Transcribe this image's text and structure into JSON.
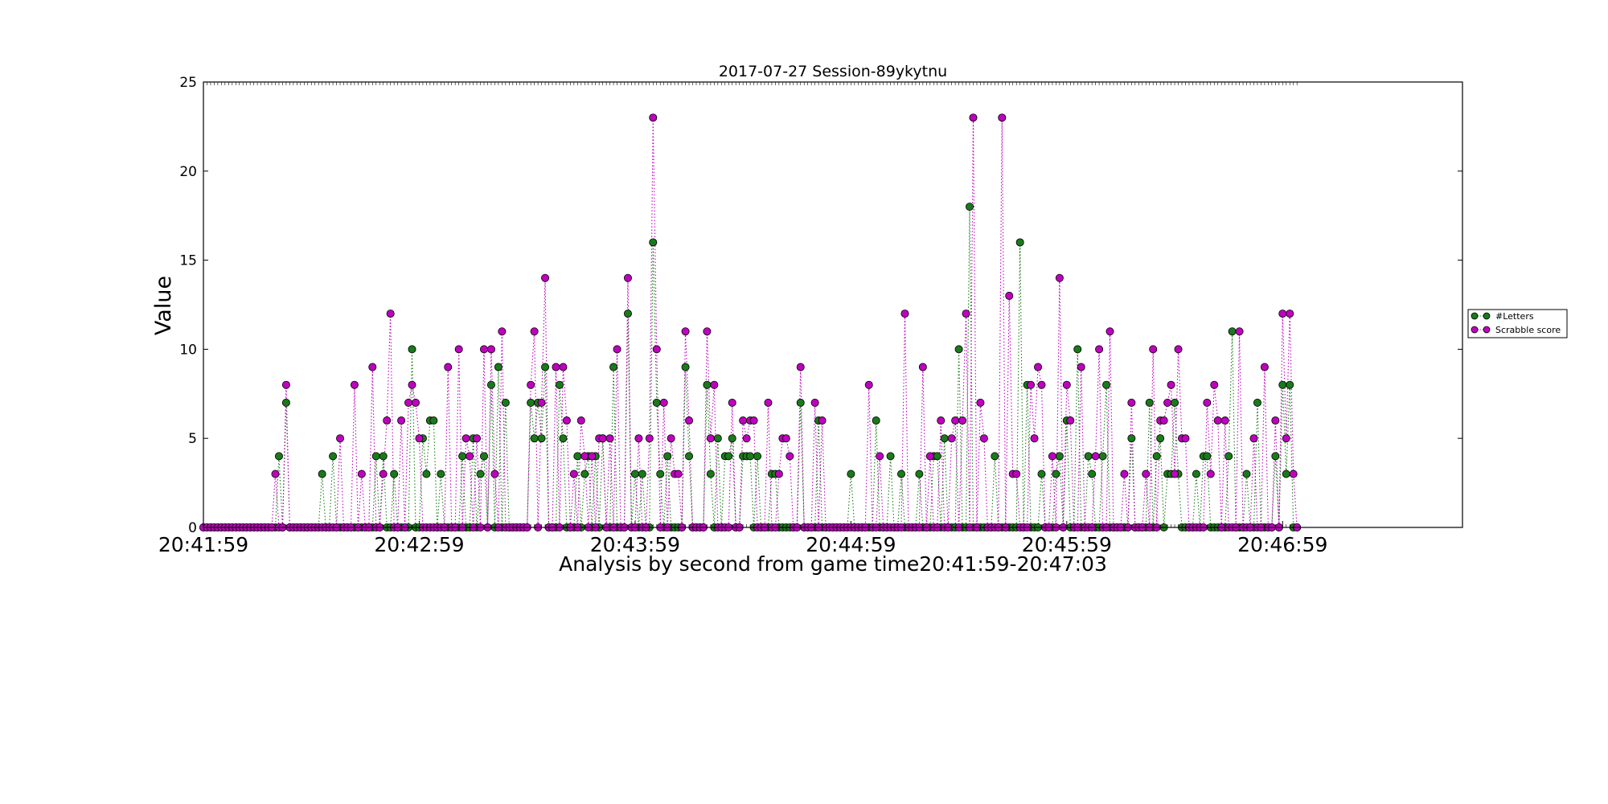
{
  "chart_data": {
    "type": "line",
    "title": "2017-07-27 Session-89ykytnu",
    "xlabel": "Analysis by second from game time20:41:59-20:47:03",
    "ylabel": "Value",
    "xlim": [
      0,
      350
    ],
    "ylim": [
      0,
      25
    ],
    "x_ticks": [
      {
        "t": 0,
        "label": "20:41:59"
      },
      {
        "t": 60,
        "label": "20:42:59"
      },
      {
        "t": 120,
        "label": "20:43:59"
      },
      {
        "t": 180,
        "label": "20:44:59"
      },
      {
        "t": 240,
        "label": "20:45:59"
      },
      {
        "t": 300,
        "label": "20:46:59"
      }
    ],
    "y_ticks": [
      0,
      5,
      10,
      15,
      20,
      25
    ],
    "grid": false,
    "legend": "right-center",
    "x_end": 304,
    "series": [
      {
        "name": "#Letters",
        "color": "#1a7a1a",
        "points": [
          [
            21,
            4
          ],
          [
            23,
            7
          ],
          [
            33,
            3
          ],
          [
            36,
            4
          ],
          [
            48,
            4
          ],
          [
            50,
            4
          ],
          [
            53,
            3
          ],
          [
            58,
            10
          ],
          [
            61,
            5
          ],
          [
            62,
            3
          ],
          [
            63,
            6
          ],
          [
            64,
            6
          ],
          [
            66,
            3
          ],
          [
            72,
            4
          ],
          [
            75,
            5
          ],
          [
            77,
            3
          ],
          [
            78,
            4
          ],
          [
            80,
            8
          ],
          [
            82,
            9
          ],
          [
            84,
            7
          ],
          [
            91,
            7
          ],
          [
            92,
            5
          ],
          [
            93,
            7
          ],
          [
            94,
            5
          ],
          [
            95,
            9
          ],
          [
            99,
            8
          ],
          [
            100,
            5
          ],
          [
            104,
            4
          ],
          [
            106,
            3
          ],
          [
            107,
            4
          ],
          [
            109,
            4
          ],
          [
            111,
            5
          ],
          [
            114,
            9
          ],
          [
            118,
            12
          ],
          [
            120,
            3
          ],
          [
            122,
            3
          ],
          [
            125,
            16
          ],
          [
            126,
            7
          ],
          [
            127,
            3
          ],
          [
            129,
            4
          ],
          [
            134,
            9
          ],
          [
            135,
            4
          ],
          [
            140,
            8
          ],
          [
            141,
            3
          ],
          [
            143,
            5
          ],
          [
            145,
            4
          ],
          [
            146,
            4
          ],
          [
            147,
            5
          ],
          [
            150,
            4
          ],
          [
            151,
            4
          ],
          [
            152,
            4
          ],
          [
            154,
            4
          ],
          [
            158,
            3
          ],
          [
            159,
            3
          ],
          [
            166,
            7
          ],
          [
            171,
            6
          ],
          [
            180,
            3
          ],
          [
            187,
            6
          ],
          [
            191,
            4
          ],
          [
            194,
            3
          ],
          [
            199,
            3
          ],
          [
            203,
            4
          ],
          [
            204,
            4
          ],
          [
            206,
            5
          ],
          [
            210,
            10
          ],
          [
            213,
            18
          ],
          [
            220,
            4
          ],
          [
            227,
            16
          ],
          [
            229,
            8
          ],
          [
            233,
            3
          ],
          [
            237,
            3
          ],
          [
            238,
            4
          ],
          [
            240,
            6
          ],
          [
            243,
            10
          ],
          [
            246,
            4
          ],
          [
            247,
            3
          ],
          [
            250,
            4
          ],
          [
            251,
            8
          ],
          [
            258,
            5
          ],
          [
            263,
            7
          ],
          [
            265,
            4
          ],
          [
            266,
            5
          ],
          [
            268,
            3
          ],
          [
            269,
            3
          ],
          [
            270,
            7
          ],
          [
            271,
            3
          ],
          [
            276,
            3
          ],
          [
            278,
            4
          ],
          [
            279,
            4
          ],
          [
            285,
            4
          ],
          [
            286,
            11
          ],
          [
            290,
            3
          ],
          [
            293,
            7
          ],
          [
            298,
            4
          ],
          [
            300,
            8
          ],
          [
            301,
            3
          ],
          [
            302,
            8
          ]
        ]
      },
      {
        "name": "Scrabble score",
        "color": "#bf00bf",
        "points": [
          [
            20,
            3
          ],
          [
            23,
            8
          ],
          [
            38,
            5
          ],
          [
            42,
            8
          ],
          [
            44,
            3
          ],
          [
            47,
            9
          ],
          [
            50,
            3
          ],
          [
            51,
            6
          ],
          [
            52,
            12
          ],
          [
            55,
            6
          ],
          [
            57,
            7
          ],
          [
            58,
            8
          ],
          [
            59,
            7
          ],
          [
            60,
            5
          ],
          [
            68,
            9
          ],
          [
            71,
            10
          ],
          [
            73,
            5
          ],
          [
            74,
            4
          ],
          [
            76,
            5
          ],
          [
            78,
            10
          ],
          [
            80,
            10
          ],
          [
            81,
            3
          ],
          [
            83,
            11
          ],
          [
            91,
            8
          ],
          [
            92,
            11
          ],
          [
            94,
            7
          ],
          [
            95,
            14
          ],
          [
            98,
            9
          ],
          [
            100,
            9
          ],
          [
            101,
            6
          ],
          [
            103,
            3
          ],
          [
            105,
            6
          ],
          [
            106,
            4
          ],
          [
            108,
            4
          ],
          [
            110,
            5
          ],
          [
            111,
            5
          ],
          [
            113,
            5
          ],
          [
            115,
            10
          ],
          [
            118,
            14
          ],
          [
            121,
            5
          ],
          [
            124,
            5
          ],
          [
            125,
            23
          ],
          [
            126,
            10
          ],
          [
            128,
            7
          ],
          [
            130,
            5
          ],
          [
            131,
            3
          ],
          [
            132,
            3
          ],
          [
            134,
            11
          ],
          [
            135,
            6
          ],
          [
            140,
            11
          ],
          [
            141,
            5
          ],
          [
            142,
            8
          ],
          [
            147,
            7
          ],
          [
            150,
            6
          ],
          [
            151,
            5
          ],
          [
            152,
            6
          ],
          [
            153,
            6
          ],
          [
            157,
            7
          ],
          [
            160,
            3
          ],
          [
            161,
            5
          ],
          [
            162,
            5
          ],
          [
            163,
            4
          ],
          [
            166,
            9
          ],
          [
            170,
            7
          ],
          [
            172,
            6
          ],
          [
            185,
            8
          ],
          [
            188,
            4
          ],
          [
            195,
            12
          ],
          [
            200,
            9
          ],
          [
            202,
            4
          ],
          [
            205,
            6
          ],
          [
            208,
            5
          ],
          [
            209,
            6
          ],
          [
            211,
            6
          ],
          [
            212,
            12
          ],
          [
            214,
            23
          ],
          [
            216,
            7
          ],
          [
            217,
            5
          ],
          [
            222,
            23
          ],
          [
            224,
            13
          ],
          [
            225,
            3
          ],
          [
            226,
            3
          ],
          [
            230,
            8
          ],
          [
            231,
            5
          ],
          [
            232,
            9
          ],
          [
            233,
            8
          ],
          [
            236,
            4
          ],
          [
            238,
            14
          ],
          [
            240,
            8
          ],
          [
            241,
            6
          ],
          [
            244,
            9
          ],
          [
            248,
            4
          ],
          [
            249,
            10
          ],
          [
            252,
            11
          ],
          [
            256,
            3
          ],
          [
            258,
            7
          ],
          [
            262,
            3
          ],
          [
            264,
            10
          ],
          [
            266,
            6
          ],
          [
            267,
            6
          ],
          [
            268,
            7
          ],
          [
            269,
            8
          ],
          [
            270,
            3
          ],
          [
            271,
            10
          ],
          [
            272,
            5
          ],
          [
            273,
            5
          ],
          [
            279,
            7
          ],
          [
            280,
            3
          ],
          [
            281,
            8
          ],
          [
            282,
            6
          ],
          [
            284,
            6
          ],
          [
            288,
            11
          ],
          [
            292,
            5
          ],
          [
            295,
            9
          ],
          [
            298,
            6
          ],
          [
            300,
            12
          ],
          [
            301,
            5
          ],
          [
            302,
            12
          ],
          [
            303,
            3
          ]
        ]
      }
    ]
  }
}
